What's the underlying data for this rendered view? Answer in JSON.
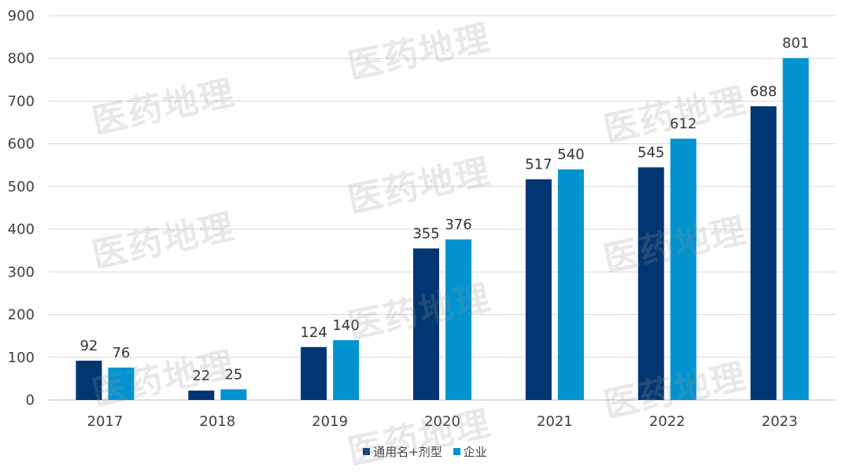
{
  "chart_data": {
    "type": "bar",
    "categories": [
      "2017",
      "2018",
      "2019",
      "2020",
      "2021",
      "2022",
      "2023"
    ],
    "series": [
      {
        "name": "通用名+剂型",
        "color": "#003671",
        "values": [
          92,
          22,
          124,
          355,
          517,
          545,
          688
        ]
      },
      {
        "name": "企业",
        "color": "#0093D0",
        "values": [
          76,
          25,
          140,
          376,
          540,
          612,
          801
        ]
      }
    ],
    "ylim": [
      0,
      900
    ],
    "yticks": [
      0,
      100,
      200,
      300,
      400,
      500,
      600,
      700,
      800,
      900
    ],
    "grid": true,
    "legend_position": "bottom-center"
  },
  "watermark": "医药地理"
}
